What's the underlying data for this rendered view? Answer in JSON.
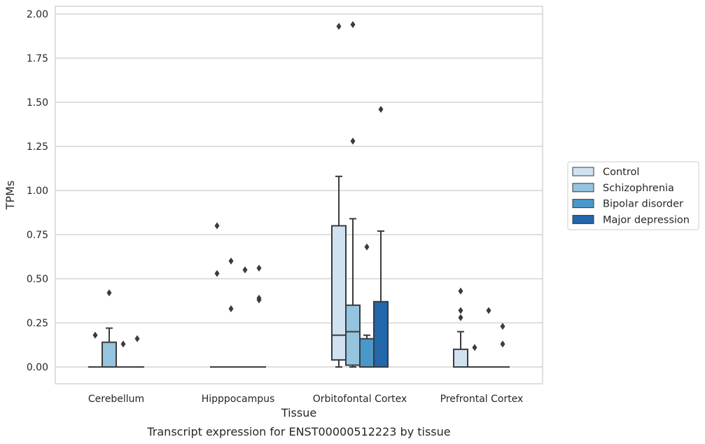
{
  "chart_data": {
    "type": "box",
    "title": "",
    "caption": "Transcript expression for ENST00000512223 by tissue",
    "xlabel": "Tissue",
    "ylabel": "TPMs",
    "ylim": [
      -0.09,
      2.04
    ],
    "yticks": [
      "0.00",
      "0.25",
      "0.50",
      "0.75",
      "1.00",
      "1.25",
      "1.50",
      "1.75",
      "2.00"
    ],
    "ytick_values": [
      0,
      0.25,
      0.5,
      0.75,
      1.0,
      1.25,
      1.5,
      1.75,
      2.0
    ],
    "grid": true,
    "legend_position": "right",
    "categories": [
      "Cerebellum",
      "Hipppocampus",
      "Orbitofontal Cortex",
      "Prefrontal Cortex"
    ],
    "series": [
      {
        "name": "Control",
        "color": "#d0e1f2",
        "boxes": [
          {
            "q1": 0,
            "median": 0,
            "q3": 0,
            "whislo": 0,
            "whishi": 0,
            "fliers": [
              0.18
            ]
          },
          {
            "q1": 0,
            "median": 0,
            "q3": 0,
            "whislo": 0,
            "whishi": 0,
            "fliers": [
              0.53,
              0.8
            ]
          },
          {
            "q1": 0.04,
            "median": 0.18,
            "q3": 0.8,
            "whislo": 0,
            "whishi": 1.08,
            "fliers": [
              1.93
            ]
          },
          {
            "q1": 0,
            "median": 0,
            "q3": 0.1,
            "whislo": 0,
            "whishi": 0.2,
            "fliers": [
              0.28,
              0.32,
              0.43
            ]
          }
        ]
      },
      {
        "name": "Schizophrenia",
        "color": "#94c4df",
        "boxes": [
          {
            "q1": 0,
            "median": 0,
            "q3": 0.14,
            "whislo": 0,
            "whishi": 0.22,
            "fliers": [
              0.42
            ]
          },
          {
            "q1": 0,
            "median": 0,
            "q3": 0,
            "whislo": 0,
            "whishi": 0,
            "fliers": [
              0.33,
              0.6
            ]
          },
          {
            "q1": 0.01,
            "median": 0.2,
            "q3": 0.35,
            "whislo": 0,
            "whishi": 0.84,
            "fliers": [
              1.28,
              1.94
            ]
          },
          {
            "q1": 0,
            "median": 0,
            "q3": 0,
            "whislo": 0,
            "whishi": 0,
            "fliers": [
              0.11
            ]
          }
        ]
      },
      {
        "name": "Bipolar disorder",
        "color": "#4a98c9",
        "boxes": [
          {
            "q1": 0,
            "median": 0,
            "q3": 0,
            "whislo": 0,
            "whishi": 0,
            "fliers": [
              0.13
            ]
          },
          {
            "q1": 0,
            "median": 0,
            "q3": 0,
            "whislo": 0,
            "whishi": 0,
            "fliers": [
              0.55
            ]
          },
          {
            "q1": 0,
            "median": 0,
            "q3": 0.16,
            "whislo": 0,
            "whishi": 0.18,
            "fliers": [
              0.68
            ]
          },
          {
            "q1": 0,
            "median": 0,
            "q3": 0,
            "whislo": 0,
            "whishi": 0,
            "fliers": [
              0.32
            ]
          }
        ]
      },
      {
        "name": "Major depression",
        "color": "#2266ac",
        "boxes": [
          {
            "q1": 0,
            "median": 0,
            "q3": 0,
            "whislo": 0,
            "whishi": 0,
            "fliers": [
              0.16
            ]
          },
          {
            "q1": 0,
            "median": 0,
            "q3": 0,
            "whislo": 0,
            "whishi": 0,
            "fliers": [
              0.38,
              0.39,
              0.56
            ]
          },
          {
            "q1": 0,
            "median": 0,
            "q3": 0.37,
            "whislo": 0,
            "whishi": 0.77,
            "fliers": [
              1.46
            ]
          },
          {
            "q1": 0,
            "median": 0,
            "q3": 0,
            "whislo": 0,
            "whishi": 0,
            "fliers": [
              0.13,
              0.23
            ]
          }
        ]
      }
    ]
  }
}
